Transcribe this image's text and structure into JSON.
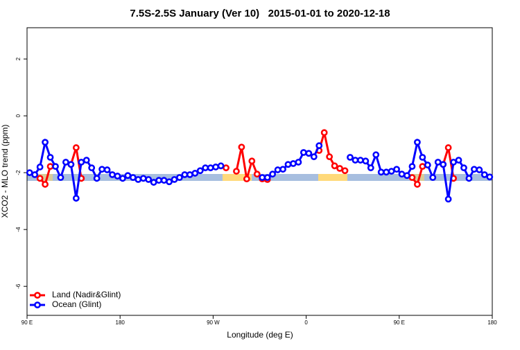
{
  "chart_data": {
    "type": "line",
    "title": "7.5S-2.5S January (Ver 10)   2015-01-01 to 2020-12-18",
    "x_label": "Longitude (deg E)",
    "y_label": "XCO2 - MLO trend (ppm)",
    "xlim": [
      90,
      540
    ],
    "ylim": [
      -7.02,
      3.1
    ],
    "xticks": [
      {
        "value": 90,
        "label": "90 E"
      },
      {
        "value": 180,
        "label": "180"
      },
      {
        "value": 270,
        "label": "90 W"
      },
      {
        "value": 360,
        "label": "0"
      },
      {
        "value": 450,
        "label": "90 E"
      },
      {
        "value": 540,
        "label": "180"
      }
    ],
    "yticks": [
      2,
      0,
      -2,
      -4,
      -6
    ],
    "legend": "bottom-left",
    "x": [
      92.5,
      97.5,
      102.5,
      107.5,
      112.5,
      117.5,
      122.5,
      127.5,
      132.5,
      137.5,
      142.5,
      147.5,
      152.5,
      157.5,
      162.5,
      167.5,
      172.5,
      177.5,
      182.5,
      187.5,
      192.5,
      197.5,
      202.5,
      207.5,
      212.5,
      217.5,
      222.5,
      227.5,
      232.5,
      237.5,
      242.5,
      247.5,
      252.5,
      257.5,
      262.5,
      267.5,
      272.5,
      277.5,
      282.5,
      287.5,
      292.5,
      297.5,
      302.5,
      307.5,
      312.5,
      317.5,
      322.5,
      327.5,
      332.5,
      337.5,
      342.5,
      347.5,
      352.5,
      357.5,
      362.5,
      367.5,
      372.5,
      377.5,
      382.5,
      387.5,
      392.5,
      397.5,
      402.5,
      407.5,
      412.5,
      417.5,
      422.5,
      427.5,
      432.5,
      437.5,
      442.5,
      447.5,
      452.5,
      457.5,
      462.5,
      467.5,
      472.5,
      477.5,
      482.5,
      487.5,
      492.5,
      497.5,
      502.5,
      507.5,
      512.5,
      517.5,
      522.5,
      527.5,
      532.5,
      537.5
    ],
    "series": [
      {
        "name": "Land (Nadir&Glint)",
        "color": "#ff0000",
        "values": [
          null,
          null,
          -2.2,
          -2.41,
          -1.78,
          null,
          null,
          null,
          -1.71,
          -1.12,
          -2.2,
          null,
          null,
          null,
          null,
          null,
          null,
          null,
          null,
          null,
          null,
          null,
          null,
          null,
          null,
          null,
          null,
          null,
          null,
          null,
          null,
          null,
          null,
          null,
          null,
          null,
          null,
          null,
          -1.83,
          null,
          -1.95,
          -1.1,
          -2.22,
          -1.59,
          -2.05,
          -2.22,
          -2.24,
          null,
          null,
          null,
          null,
          null,
          null,
          null,
          null,
          null,
          -1.22,
          -0.59,
          -1.44,
          -1.76,
          -1.85,
          -1.93,
          null,
          null,
          null,
          null,
          null,
          null,
          null,
          null,
          null,
          null,
          null,
          null,
          -2.17,
          -2.41,
          -1.78,
          null,
          null,
          null,
          -1.71,
          -1.12,
          -2.2,
          null,
          null,
          null,
          null,
          null,
          null,
          null
        ]
      },
      {
        "name": "Ocean (Glint)",
        "color": "#0000ff",
        "values": [
          -2.0,
          -2.07,
          -1.8,
          -0.93,
          -1.46,
          -1.78,
          -2.17,
          -1.63,
          -1.71,
          -2.9,
          -1.63,
          -1.56,
          -1.83,
          -2.2,
          -1.88,
          -1.9,
          -2.07,
          -2.12,
          -2.2,
          -2.1,
          -2.17,
          -2.24,
          -2.2,
          -2.24,
          -2.34,
          -2.27,
          -2.27,
          -2.32,
          -2.24,
          -2.17,
          -2.07,
          -2.07,
          -2.02,
          -1.93,
          -1.83,
          -1.83,
          -1.8,
          -1.76,
          null,
          null,
          null,
          null,
          null,
          null,
          null,
          -2.17,
          -2.17,
          -2.05,
          -1.9,
          -1.88,
          -1.71,
          -1.68,
          -1.63,
          -1.29,
          -1.32,
          -1.44,
          -1.05,
          null,
          null,
          null,
          null,
          null,
          -1.46,
          -1.56,
          -1.56,
          -1.59,
          -1.83,
          -1.37,
          -1.98,
          -1.98,
          -1.95,
          -1.88,
          -2.05,
          -2.1,
          -1.78,
          -0.93,
          -1.46,
          -1.73,
          -2.17,
          -1.63,
          -1.71,
          -2.93,
          -1.63,
          -1.56,
          -1.83,
          -2.2,
          -1.88,
          -1.9,
          -2.07,
          -2.15
        ]
      }
    ]
  }
}
